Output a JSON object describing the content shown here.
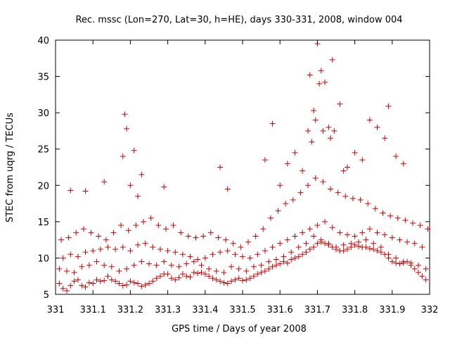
{
  "chart_data": {
    "type": "scatter",
    "title": "Rec. mssc (Lon=270, Lat=30, h=HE), days 330-331, 2008, window 004",
    "xlabel": "GPS time / Days of year 2008",
    "ylabel": "STEC from uqrg / TECUs",
    "xlim": [
      331,
      332
    ],
    "ylim": [
      5,
      40
    ],
    "xticks": [
      "331",
      "331.1",
      "331.2",
      "331.3",
      "331.4",
      "331.5",
      "331.6",
      "331.7",
      "331.8",
      "331.9",
      "332"
    ],
    "yticks": [
      "5",
      "10",
      "15",
      "20",
      "25",
      "30",
      "35",
      "40"
    ],
    "grid": false,
    "marker": "+",
    "series_color": "#cc0000",
    "series": [
      {
        "x": [
          331.01,
          331.02,
          331.03,
          331.04,
          331.05,
          331.06,
          331.07,
          331.08,
          331.09,
          331.1,
          331.11,
          331.12,
          331.13,
          331.14,
          331.15,
          331.16,
          331.17,
          331.18,
          331.19,
          331.2,
          331.21,
          331.22,
          331.23,
          331.24,
          331.25,
          331.26,
          331.27,
          331.28,
          331.29,
          331.3,
          331.31,
          331.32,
          331.33,
          331.34,
          331.35,
          331.36,
          331.37,
          331.38,
          331.39,
          331.4,
          331.41,
          331.42,
          331.43,
          331.44,
          331.45,
          331.46,
          331.47,
          331.48,
          331.49,
          331.5,
          331.51,
          331.52,
          331.53,
          331.54,
          331.55,
          331.56,
          331.57,
          331.58,
          331.59,
          331.6,
          331.61,
          331.62,
          331.63,
          331.64,
          331.65,
          331.66,
          331.67,
          331.68,
          331.69,
          331.7,
          331.71,
          331.72,
          331.73,
          331.74,
          331.75,
          331.76,
          331.77,
          331.78,
          331.79,
          331.8,
          331.81,
          331.82,
          331.83,
          331.84,
          331.85,
          331.86,
          331.87,
          331.88,
          331.89,
          331.9,
          331.91,
          331.92,
          331.93,
          331.94,
          331.95,
          331.96,
          331.97,
          331.98,
          331.99,
          331.01,
          331.03,
          331.05,
          331.07,
          331.09,
          331.11,
          331.13,
          331.15,
          331.17,
          331.19,
          331.21,
          331.23,
          331.25,
          331.27,
          331.29,
          331.31,
          331.33,
          331.35,
          331.37,
          331.39,
          331.41,
          331.43,
          331.45,
          331.47,
          331.49,
          331.51,
          331.53,
          331.55,
          331.57,
          331.59,
          331.61,
          331.63,
          331.65,
          331.67,
          331.69,
          331.71,
          331.73,
          331.75,
          331.77,
          331.79,
          331.81,
          331.83,
          331.85,
          331.87,
          331.89,
          331.91,
          331.93,
          331.95,
          331.97,
          331.99,
          331.02,
          331.04,
          331.06,
          331.08,
          331.1,
          331.12,
          331.14,
          331.16,
          331.18,
          331.2,
          331.22,
          331.24,
          331.26,
          331.28,
          331.3,
          331.32,
          331.34,
          331.36,
          331.38,
          331.4,
          331.42,
          331.44,
          331.46,
          331.48,
          331.5,
          331.52,
          331.54,
          331.56,
          331.58,
          331.6,
          331.62,
          331.64,
          331.66,
          331.68,
          331.7,
          331.72,
          331.74,
          331.76,
          331.78,
          331.8,
          331.82,
          331.84,
          331.86,
          331.88,
          331.9,
          331.92,
          331.94,
          331.96,
          331.98,
          331.015,
          331.035,
          331.055,
          331.075,
          331.095,
          331.115,
          331.135,
          331.155,
          331.175,
          331.195,
          331.215,
          331.235,
          331.255,
          331.275,
          331.295,
          331.315,
          331.335,
          331.355,
          331.375,
          331.395,
          331.415,
          331.435,
          331.455,
          331.475,
          331.495,
          331.515,
          331.535,
          331.555,
          331.575,
          331.595,
          331.615,
          331.635,
          331.655,
          331.675,
          331.695,
          331.715,
          331.735,
          331.755,
          331.775,
          331.795,
          331.815,
          331.835,
          331.855,
          331.875,
          331.895,
          331.915,
          331.935,
          331.955,
          331.975,
          331.995,
          331.18,
          331.185,
          331.19,
          331.2,
          331.21,
          331.22,
          331.56,
          331.58,
          331.6,
          331.62,
          331.64,
          331.66,
          331.675,
          331.68,
          331.685,
          331.69,
          331.695,
          331.7,
          331.705,
          331.71,
          331.715,
          331.72,
          331.73,
          331.735,
          331.74,
          331.745,
          331.76,
          331.77,
          331.78,
          331.8,
          331.82,
          331.84,
          331.86,
          331.88,
          331.89,
          331.91,
          331.93,
          331.44,
          331.46,
          331.29,
          331.23,
          331.13,
          331.08,
          331.04
        ],
        "y": [
          6.5,
          5.8,
          5.5,
          6.2,
          6.8,
          7.0,
          6.2,
          6.0,
          6.6,
          6.5,
          7.0,
          6.8,
          6.9,
          7.5,
          7.0,
          6.8,
          6.5,
          6.2,
          6.3,
          6.8,
          6.6,
          6.5,
          6.1,
          6.3,
          6.5,
          6.8,
          7.2,
          7.5,
          7.8,
          7.8,
          7.2,
          7.0,
          7.3,
          7.8,
          7.5,
          7.4,
          8.0,
          7.9,
          8.0,
          7.8,
          7.5,
          7.2,
          7.0,
          6.8,
          6.6,
          6.5,
          6.8,
          7.0,
          7.2,
          6.9,
          7.0,
          7.2,
          7.5,
          7.8,
          8.0,
          8.2,
          8.5,
          8.8,
          9.0,
          9.2,
          9.5,
          9.3,
          9.8,
          10.0,
          10.2,
          10.5,
          10.8,
          11.2,
          11.5,
          12.0,
          12.2,
          12.0,
          11.8,
          11.5,
          11.2,
          11.0,
          11.0,
          11.2,
          11.5,
          11.8,
          11.6,
          11.5,
          11.5,
          11.3,
          11.2,
          11.0,
          10.8,
          10.5,
          10.0,
          9.5,
          9.3,
          9.2,
          9.3,
          9.5,
          9.0,
          8.5,
          8.0,
          7.5,
          7.0,
          8.5,
          8.2,
          8.0,
          8.8,
          9.0,
          9.5,
          9.0,
          8.8,
          8.2,
          8.5,
          9.0,
          9.5,
          9.2,
          9.0,
          9.5,
          9.0,
          8.8,
          9.2,
          9.5,
          9.0,
          8.5,
          8.2,
          8.0,
          8.8,
          8.5,
          8.2,
          8.8,
          9.0,
          9.5,
          9.8,
          10.2,
          10.8,
          11.5,
          12.0,
          13.0,
          12.5,
          12.0,
          11.5,
          11.8,
          12.0,
          12.2,
          12.5,
          12.0,
          11.5,
          10.5,
          10.0,
          9.5,
          9.3,
          9.0,
          8.5,
          10.0,
          10.5,
          10.2,
          10.8,
          11.0,
          11.2,
          11.5,
          11.2,
          11.5,
          11.0,
          11.8,
          12.0,
          11.5,
          11.2,
          11.0,
          10.8,
          10.5,
          10.2,
          9.8,
          10.0,
          10.5,
          10.8,
          11.0,
          10.5,
          10.2,
          10.0,
          10.5,
          11.0,
          11.5,
          12.0,
          12.5,
          13.0,
          13.5,
          14.0,
          14.5,
          15.0,
          14.2,
          13.5,
          13.2,
          13.0,
          13.5,
          14.0,
          13.5,
          13.2,
          12.8,
          12.5,
          12.2,
          12.0,
          11.5,
          12.5,
          12.8,
          13.5,
          14.0,
          13.5,
          13.0,
          12.5,
          13.5,
          14.5,
          13.8,
          14.5,
          15.0,
          15.5,
          14.5,
          14.0,
          14.5,
          13.5,
          13.0,
          12.8,
          13.0,
          13.5,
          12.8,
          12.5,
          12.0,
          11.5,
          12.2,
          13.0,
          14.0,
          15.5,
          16.5,
          17.5,
          18.0,
          19.0,
          20.0,
          21.0,
          20.5,
          19.5,
          19.0,
          18.5,
          18.2,
          18.0,
          17.5,
          16.8,
          16.2,
          15.8,
          15.5,
          15.2,
          14.8,
          14.5,
          14.0,
          24.0,
          29.8,
          27.8,
          20.0,
          24.8,
          18.5,
          23.5,
          28.5,
          20.0,
          23.0,
          24.5,
          22.0,
          27.5,
          35.2,
          26.0,
          30.3,
          29.0,
          39.5,
          34.0,
          35.8,
          27.5,
          34.2,
          28.0,
          26.5,
          37.3,
          27.5,
          31.2,
          22.0,
          22.5,
          24.5,
          23.5,
          29.0,
          28.0,
          26.5,
          30.9,
          24.0,
          23.0,
          22.5,
          19.5,
          19.8,
          21.5,
          20.5,
          19.2,
          19.3
        ]
      }
    ]
  }
}
